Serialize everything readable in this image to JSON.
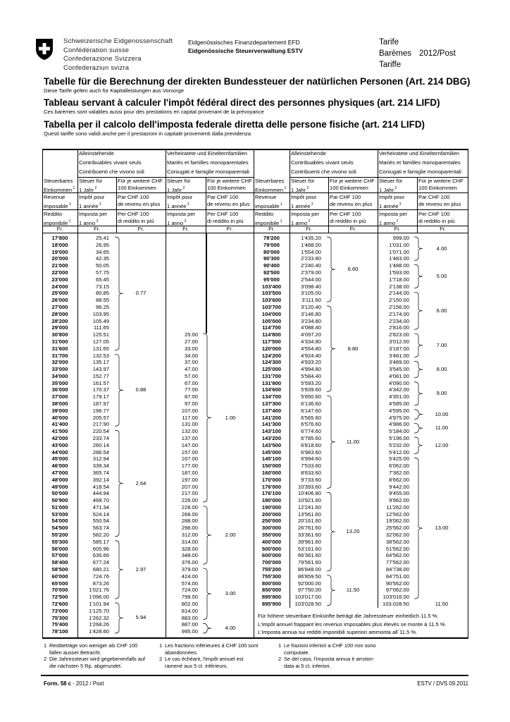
{
  "header": {
    "logo_lines": [
      "Schweizerische Eidgenossenschaft",
      "Confédération suisse",
      "Confederazione Svizzera",
      "Confederaziun svizra"
    ],
    "department": "Eidgenössisches Finanzdepartement EFD",
    "office": "Eidgenössische Steuerverwaltung ESTV",
    "doc_type": [
      "Tarife",
      "Barèmes",
      "Tariffe"
    ],
    "edition": "2012/Post"
  },
  "titles": [
    {
      "title": "Tabelle für die Berechnung der direkten Bundessteuer der natürlichen Personen (Art. 214 DBG)",
      "subtitle": "Diese Tarife gelten auch für Kapitalleistungen aus Vorsorge"
    },
    {
      "title": "Tableau servant à calculer l'impôt fédéral direct des personnes physiques (art. 214 LIFD)",
      "subtitle": "Ces barèmes sont valables aussi pour des prestations en capital provenant de la prévoyance"
    },
    {
      "title": "Tabella per il calcolo dell'imposta federale diretta delle persone fisiche (art. 214 LIFD)",
      "subtitle": "Questi tariffe sono validi anche per il prestazioni in capitale provenienti dalla previdenza"
    }
  ],
  "table_headers": {
    "group_single": [
      "Alleinstehende",
      "Contribuables vivant seuls",
      "Contribuenti che vivono soli"
    ],
    "group_married": [
      "Verheiratete und Einelternfamilien",
      "Mariès et familles monoparentales",
      "Coniugati e famiglie monoparentali"
    ],
    "income": [
      [
        "Steuerbares",
        "Einkommen",
        "1"
      ],
      [
        "Revenue",
        "imposable",
        "1"
      ],
      [
        "Reddito",
        "imponibile",
        "1"
      ]
    ],
    "tax": [
      [
        "Steuer für",
        "1 Jahr",
        "2"
      ],
      [
        "Impôt pour",
        "1 année",
        "2"
      ],
      [
        "Imposta per",
        "1 anno",
        "2"
      ]
    ],
    "rate": [
      [
        "Für je weitere CHF",
        "100 Einkommen",
        ""
      ],
      [
        "Par CHF 100",
        "de revenu en plus",
        ""
      ],
      [
        "Per CHF 100",
        "di reddito in più",
        ""
      ]
    ],
    "currency": "Fr."
  },
  "left_table": {
    "rows": [
      [
        "17'800",
        "25.41",
        ""
      ],
      [
        "18'000",
        "26.95",
        ""
      ],
      [
        "19'000",
        "34.65",
        ""
      ],
      [
        "20'000",
        "42.35",
        ""
      ],
      [
        "21'000",
        "50.05",
        ""
      ],
      [
        "22'000",
        "57.75",
        ""
      ],
      [
        "23'000",
        "65.45",
        ""
      ],
      [
        "24'000",
        "73.15",
        ""
      ],
      [
        "25'000",
        "80.85",
        ""
      ],
      [
        "26'000",
        "88.55",
        ""
      ],
      [
        "27'000",
        "96.25",
        ""
      ],
      [
        "28'000",
        "103.95",
        ""
      ],
      [
        "28'200",
        "105.49",
        ""
      ],
      [
        "29'000",
        "111.65",
        ""
      ],
      [
        "30'800",
        "125.51",
        "25.00"
      ],
      [
        "31'000",
        "127.05",
        "27.00"
      ],
      [
        "31'600",
        "131.65",
        "33.00"
      ],
      [
        "31'700",
        "132.53",
        "34.00"
      ],
      [
        "32'000",
        "135.17",
        "37.00"
      ],
      [
        "33'000",
        "143.97",
        "47.00"
      ],
      [
        "34'000",
        "152.77",
        "57.00"
      ],
      [
        "35'000",
        "161.57",
        "67.00"
      ],
      [
        "36'000",
        "170.37",
        "77.00"
      ],
      [
        "37'000",
        "179.17",
        "87.00"
      ],
      [
        "38'000",
        "187.97",
        "97.00"
      ],
      [
        "39'000",
        "196.77",
        "107.00"
      ],
      [
        "40'000",
        "205.57",
        "117.00"
      ],
      [
        "41'400",
        "217.90",
        "131.00"
      ],
      [
        "41'500",
        "220.54",
        "132.00"
      ],
      [
        "42'000",
        "233.74",
        "137.00"
      ],
      [
        "43'000",
        "260.14",
        "147.00"
      ],
      [
        "44'000",
        "286.54",
        "157.00"
      ],
      [
        "45'000",
        "312.94",
        "167.00"
      ],
      [
        "46'000",
        "339.34",
        "177.00"
      ],
      [
        "47'000",
        "365.74",
        "187.00"
      ],
      [
        "48'000",
        "392.14",
        "197.00"
      ],
      [
        "49'000",
        "418.54",
        "207.00"
      ],
      [
        "50'000",
        "444.94",
        "217.00"
      ],
      [
        "50'900",
        "468.70",
        "226.00"
      ],
      [
        "51'000",
        "471.34",
        "228.00"
      ],
      [
        "53'000",
        "524.14",
        "268.00"
      ],
      [
        "54'000",
        "550.54",
        "288.00"
      ],
      [
        "54'500",
        "563.74",
        "298.00"
      ],
      [
        "55'200",
        "582.20",
        "312.00"
      ],
      [
        "55'300",
        "585.17",
        "314.00"
      ],
      [
        "56'000",
        "605.96",
        "328.00"
      ],
      [
        "57'000",
        "635.66",
        "348.00"
      ],
      [
        "58'400",
        "677.24",
        "376.00"
      ],
      [
        "58'500",
        "680.21",
        "379.00"
      ],
      [
        "60'000",
        "724.76",
        "424.00"
      ],
      [
        "65'000",
        "873.26",
        "574.00"
      ],
      [
        "70'000",
        "1'021.76",
        "724.00"
      ],
      [
        "72'500",
        "1'096.00",
        "799.00"
      ],
      [
        "72'600",
        "1'101.94",
        "802.00"
      ],
      [
        "73'000",
        "1'125.70",
        "814.00"
      ],
      [
        "75'300",
        "1'262.32",
        "883.00"
      ],
      [
        "75'400",
        "1'268.26",
        "887.00"
      ],
      [
        "78'100",
        "1'428.60",
        "995.00"
      ]
    ],
    "single_brackets": [
      {
        "from": "17'800",
        "to": "31'600",
        "rate": "0.77"
      },
      {
        "from": "31'700",
        "to": "41'400",
        "rate": "0.88"
      },
      {
        "from": "41'500",
        "to": "55'200",
        "rate": "2.64"
      },
      {
        "from": "55'300",
        "to": "72'500",
        "rate": "2.97"
      },
      {
        "from": "72'600",
        "to": "78'100",
        "rate": "5.94"
      }
    ],
    "married_brackets": [
      {
        "from": "30'800",
        "to": "50'900",
        "rate": "1.00"
      },
      {
        "from": "51'000",
        "to": "58'400",
        "rate": "2.00"
      },
      {
        "from": "58'500",
        "to": "75'300",
        "rate": "3.00"
      },
      {
        "from": "75'400",
        "to": "78'100",
        "rate": "4.00"
      }
    ]
  },
  "right_table": {
    "rows": [
      [
        "78'200",
        "1'435.20",
        "999.00"
      ],
      [
        "79'000",
        "1'488.00",
        "1'031.00"
      ],
      [
        "80'000",
        "1'554.00",
        "1'071.00"
      ],
      [
        "90'300",
        "2'233.80",
        "1'483.00"
      ],
      [
        "90'400",
        "2'240.40",
        "1'488.00"
      ],
      [
        "92'500",
        "2'379.00",
        "1'593.00"
      ],
      [
        "95'000",
        "2'544.00",
        "1'718.00"
      ],
      [
        "103'400",
        "3'098.40",
        "2'138.00"
      ],
      [
        "103'500",
        "3'105.00",
        "2'144.00"
      ],
      [
        "103'600",
        "3'111.60",
        "2'150.00"
      ],
      [
        "103'700",
        "3'120.40",
        "2'156.00"
      ],
      [
        "104'000",
        "3'146.80",
        "2'174.00"
      ],
      [
        "105'000",
        "3'234.80",
        "2'234.00"
      ],
      [
        "114'700",
        "4'088.40",
        "2'816.00"
      ],
      [
        "114'800",
        "4'097.20",
        "2'823.00"
      ],
      [
        "117'500",
        "4'334.80",
        "3'012.00"
      ],
      [
        "120'000",
        "4'554.80",
        "3'187.00"
      ],
      [
        "124'200",
        "4'924.40",
        "3'481.00"
      ],
      [
        "124'300",
        "4'933.20",
        "3'489.00"
      ],
      [
        "125'000",
        "4'994.80",
        "3'545.00"
      ],
      [
        "131'700",
        "5'584.40",
        "4'081.00"
      ],
      [
        "131'800",
        "5'593.20",
        "4'090.00"
      ],
      [
        "134'600",
        "5'839.60",
        "4'342.00"
      ],
      [
        "134'700",
        "5'850.60",
        "4'351.00"
      ],
      [
        "137'300",
        "6'136.60",
        "4'585.00"
      ],
      [
        "137'400",
        "6'147.60",
        "4'595.00"
      ],
      [
        "141'200",
        "6'565.60",
        "4'975.00"
      ],
      [
        "141'300",
        "6'576.60",
        "4'986.00"
      ],
      [
        "143'100",
        "6'774.60",
        "5'184.00"
      ],
      [
        "143'200",
        "6'785.60",
        "5'196.00"
      ],
      [
        "143'500",
        "6'818.60",
        "5'232.00"
      ],
      [
        "145'000",
        "6'983.60",
        "5'412.00"
      ],
      [
        "145'100",
        "6'994.60",
        "5'425.00"
      ],
      [
        "150'000",
        "7'533.60",
        "6'062.00"
      ],
      [
        "160'000",
        "8'633.60",
        "7'362.00"
      ],
      [
        "170'000",
        "9'733.60",
        "8'662.00"
      ],
      [
        "176'000",
        "10'393.60",
        "9'442.00"
      ],
      [
        "176'100",
        "10'406.80",
        "9'455.00"
      ],
      [
        "180'000",
        "10'921.60",
        "9'962.00"
      ],
      [
        "190'000",
        "12'241.60",
        "11'262.00"
      ],
      [
        "200'000",
        "13'561.60",
        "12'562.00"
      ],
      [
        "250'000",
        "20'161.60",
        "19'062.00"
      ],
      [
        "300'000",
        "26'761.60",
        "25'562.00"
      ],
      [
        "350'000",
        "33'361.60",
        "32'062.00"
      ],
      [
        "400'000",
        "39'961.60",
        "38'562.00"
      ],
      [
        "500'000",
        "53'161.60",
        "51'562.00"
      ],
      [
        "600'000",
        "66'361.60",
        "64'562.00"
      ],
      [
        "700'000",
        "79'561.60",
        "77'562.00"
      ],
      [
        "755'200",
        "86'848.00",
        "84'738.00"
      ],
      [
        "755'300",
        "86'859.50",
        "84'751.00"
      ],
      [
        "800'000",
        "92'000.00",
        "90'562.00"
      ],
      [
        "850'000",
        "97'750.00",
        "97'062.00"
      ],
      [
        "895'800",
        "103'017.00",
        "103'016.00"
      ],
      [
        "895'900",
        "103'028.50",
        "103.028.50"
      ]
    ],
    "single_brackets": [
      {
        "from": "78'200",
        "to": "103'600",
        "rate": "6.60"
      },
      {
        "from": "103'700",
        "to": "134'600",
        "rate": "8.80"
      },
      {
        "from": "134'700",
        "to": "176'000",
        "rate": "11.00"
      },
      {
        "from": "176'100",
        "to": "755'200",
        "rate": "13.20"
      },
      {
        "from": "755'300",
        "to": "895'900",
        "rate": "11.50"
      }
    ],
    "married_brackets": [
      {
        "from": "78'200",
        "to": "90'300",
        "rate": "4.00"
      },
      {
        "from": "90'400",
        "to": "103'400",
        "rate": "5.00"
      },
      {
        "from": "103'500",
        "to": "114'700",
        "rate": "6.00"
      },
      {
        "from": "114'800",
        "to": "124'200",
        "rate": "7.00"
      },
      {
        "from": "124'300",
        "to": "131'700",
        "rate": "8.00"
      },
      {
        "from": "131'800",
        "to": "137'300",
        "rate": "9.00"
      },
      {
        "from": "137'400",
        "to": "141'200",
        "rate": "10.00"
      },
      {
        "from": "141'300",
        "to": "143'100",
        "rate": "11.00"
      },
      {
        "from": "143'200",
        "to": "145'000",
        "rate": "12.00"
      },
      {
        "from": "145'100",
        "to": "895'800",
        "rate": "13.00"
      },
      {
        "from": "895'900",
        "to": "895'900",
        "rate": "11.50"
      }
    ],
    "notes": [
      "Für höhere steuerbare Einkünfte beträgt die Jahressteuer einheitlich 11.5 %.",
      "L'impôt annuel frappant les revenus imposables plus élevés se monte à 11.5 %.",
      "L'imposta annua sui redditi imponibili superiori ammonta all´11.5 %."
    ]
  },
  "footnotes": [
    [
      {
        "n": "1",
        "lines": [
          "Restbeträge von weniger als CHF 100",
          "fallen ausser Betracht."
        ]
      },
      {
        "n": "2",
        "lines": [
          "Die Jahressteuer wird gegebenenfalls auf",
          "die nächsten 5 Rp. abgerundet."
        ]
      }
    ],
    [
      {
        "n": "1",
        "lines": [
          "Les fractions inférieures à CHF 100 sont",
          "abandonnées."
        ]
      },
      {
        "n": "2",
        "lines": [
          "Le cas échéant, l'impôt annuel est",
          "ramené aux 5 ct. inférieurs."
        ]
      }
    ],
    [
      {
        "n": "1",
        "lines": [
          "Le frazioni inferiori a CHF 100 non sono",
          "computate."
        ]
      },
      {
        "n": "2",
        "lines": [
          "Se del caso, l'imposta annua è arroton-",
          "data ai 5 ct. inferiori."
        ]
      }
    ]
  ],
  "footer": {
    "form_label": "Form. 58 c",
    "form_rest": " - 2012 / Post",
    "issuer": "ESTV / DVS 09.2011"
  }
}
